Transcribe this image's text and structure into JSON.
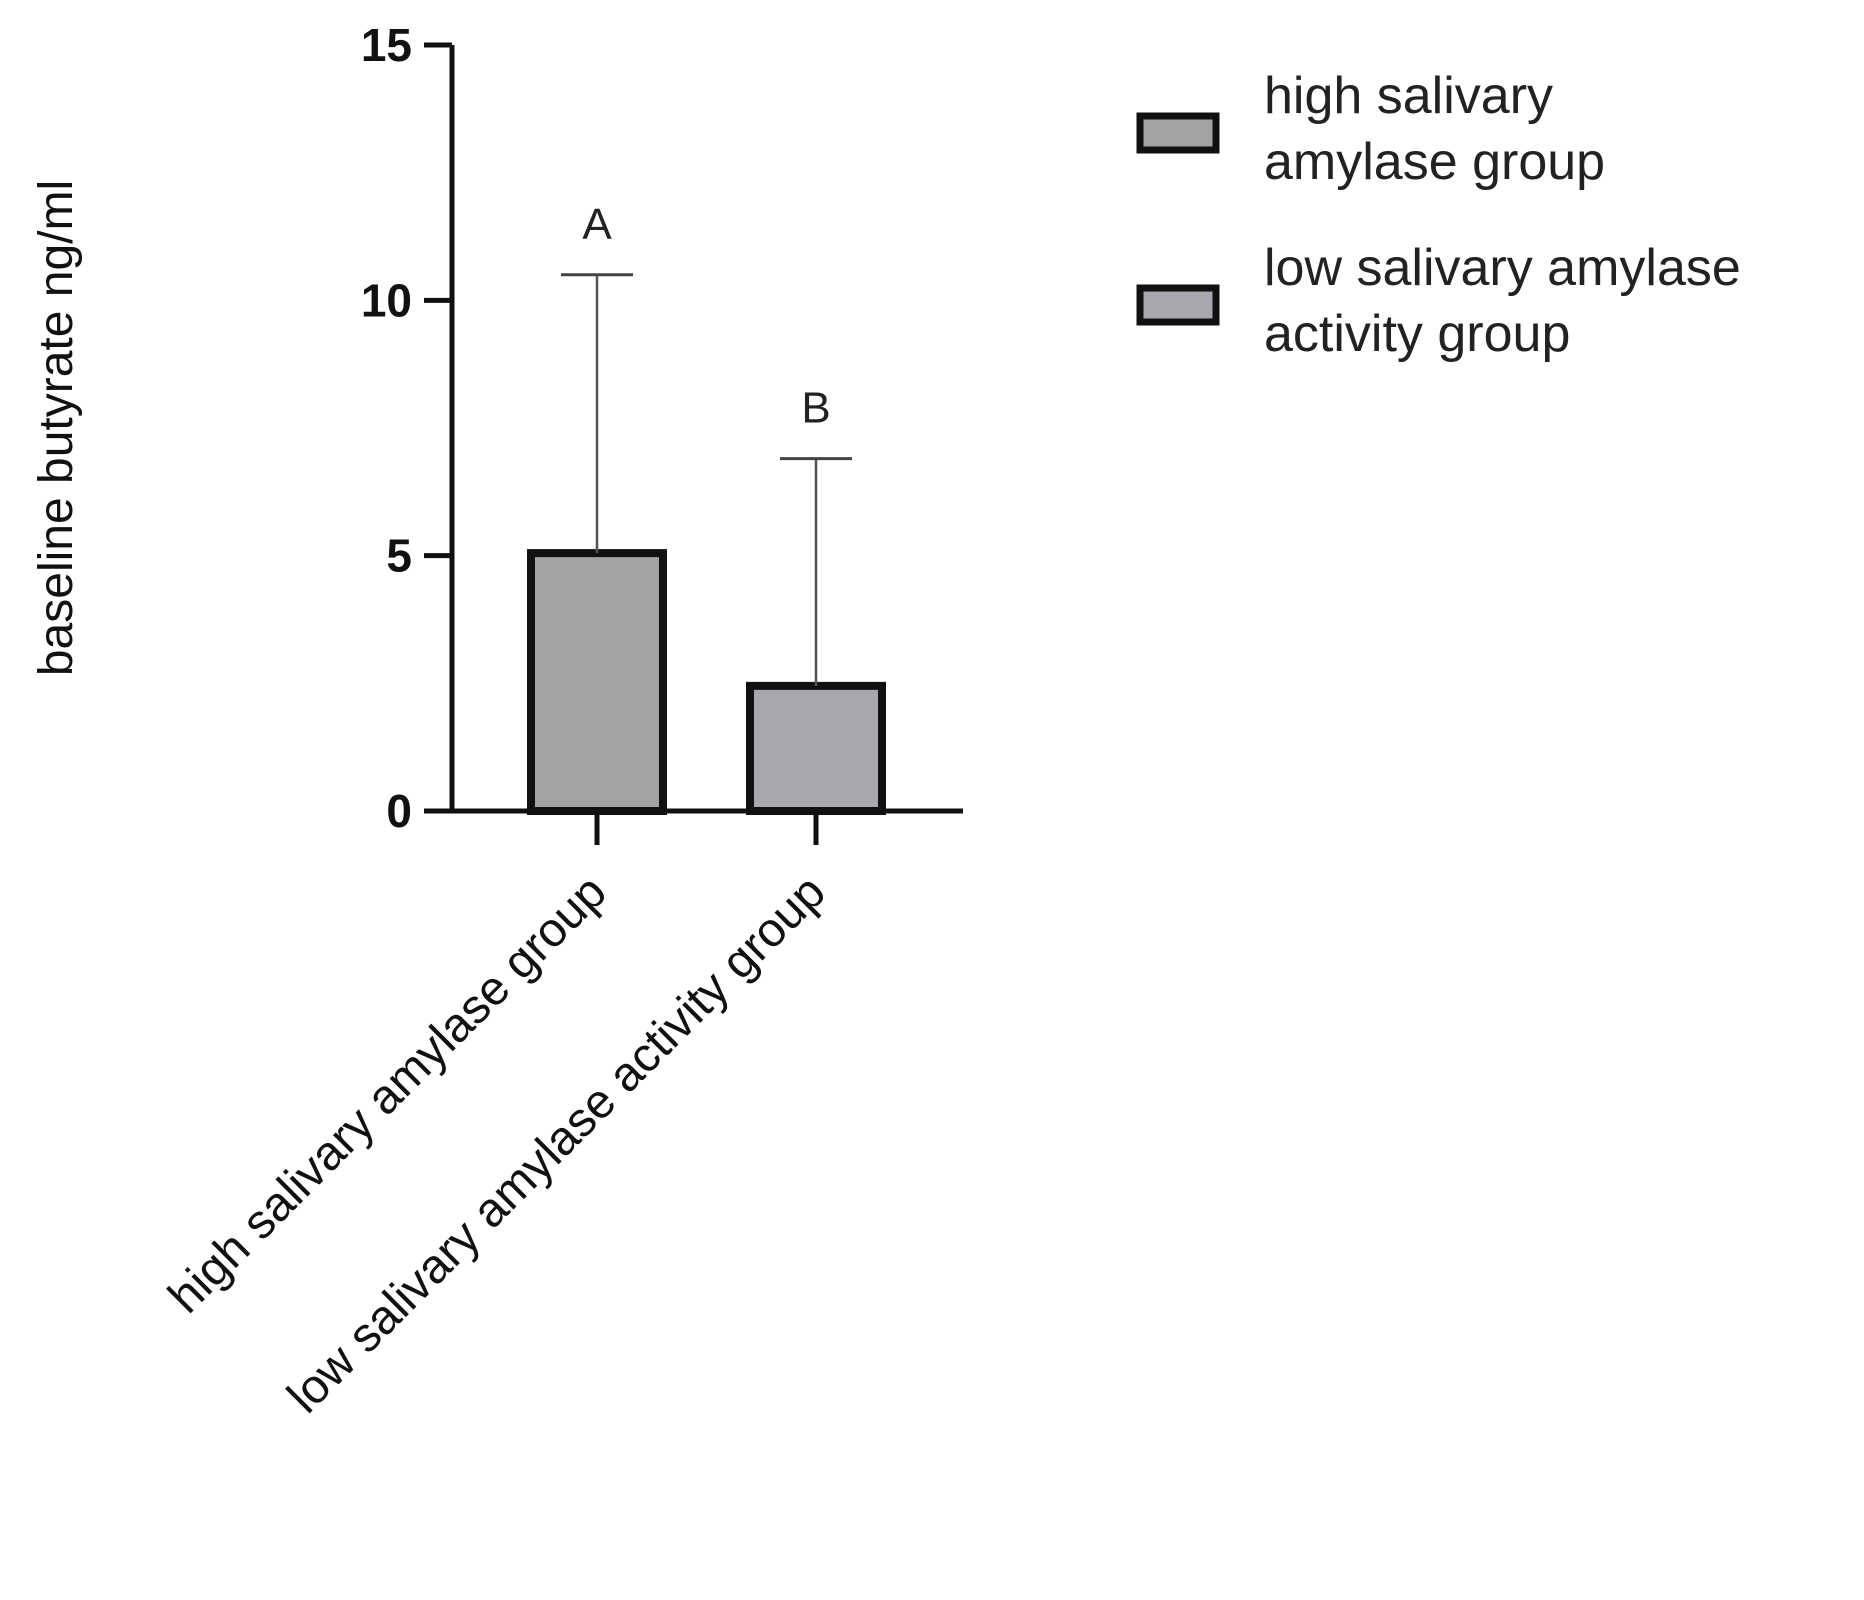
{
  "chart_data": {
    "type": "bar",
    "categories": [
      "high salivary amylase group",
      "low salivary amylase activity group"
    ],
    "values": [
      5.05,
      2.45
    ],
    "error_upper": [
      10.5,
      6.9
    ],
    "annotations": [
      "A",
      "B"
    ],
    "colors": [
      "#a3a3a3",
      "#a8a7ae"
    ],
    "ylabel": "baseline butyrate ng/ml",
    "xlabel": "",
    "ylim": [
      0,
      15
    ],
    "yticks": [
      0,
      5,
      10,
      15
    ],
    "ytick_labels": [
      "0",
      "5",
      "10",
      "15"
    ],
    "grid": false,
    "legend_position": "top-right",
    "legend": [
      {
        "lines": [
          "high salivary",
          "amylase group"
        ],
        "color": "#a3a3a3"
      },
      {
        "lines": [
          "low salivary amylase",
          "activity group"
        ],
        "color": "#a8a7ae"
      }
    ]
  }
}
